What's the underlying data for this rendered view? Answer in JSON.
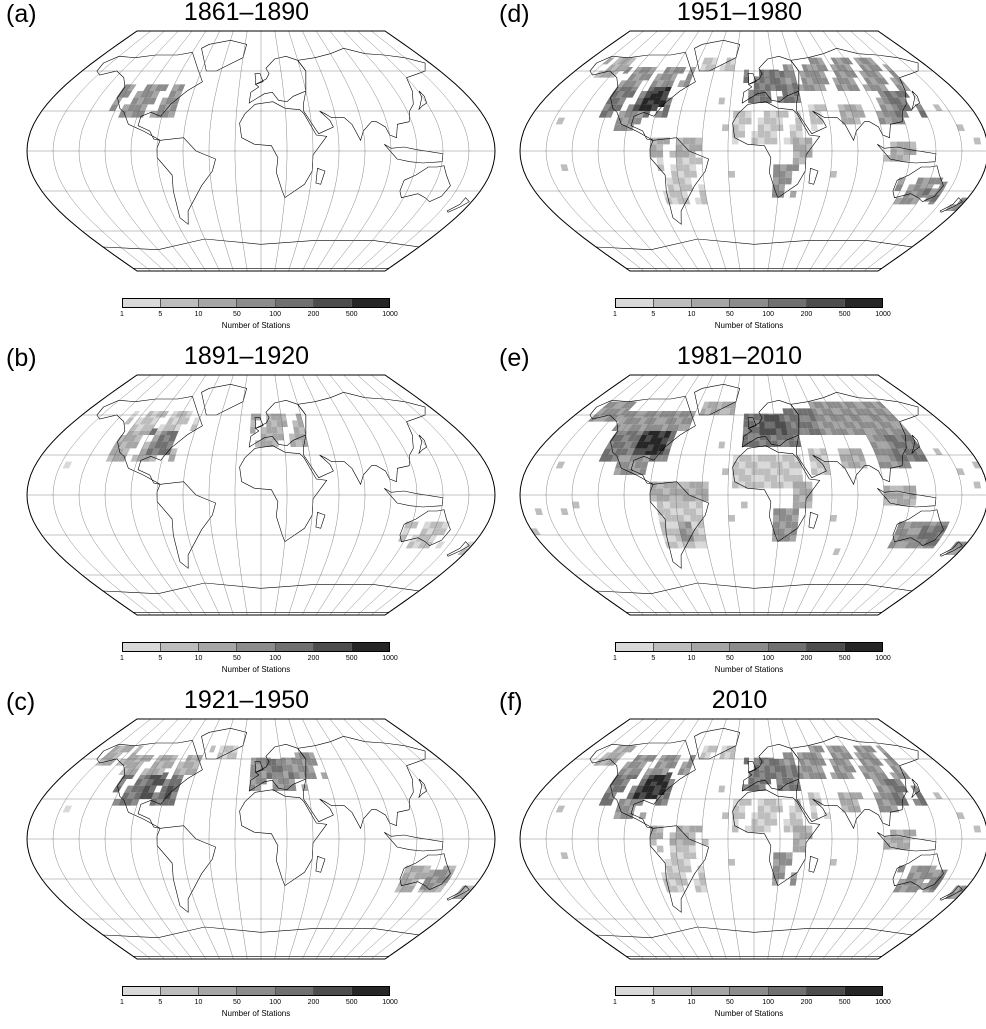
{
  "legend": {
    "title": "Number of Stations",
    "ticks": [
      "1",
      "5",
      "10",
      "50",
      "100",
      "200",
      "500",
      "1000"
    ],
    "colors": [
      "#d9d9d9",
      "#bdbdbd",
      "#a6a6a6",
      "#8c8c8c",
      "#707070",
      "#4d4d4d",
      "#262626",
      "#000000"
    ]
  },
  "panels": [
    {
      "letter": "(a)",
      "title": "1861–1890",
      "coverage_level": 1
    },
    {
      "letter": "(b)",
      "title": "1891–1920",
      "coverage_level": 2
    },
    {
      "letter": "(c)",
      "title": "1921–1950",
      "coverage_level": 3
    },
    {
      "letter": "(d)",
      "title": "1951–1980",
      "coverage_level": 4
    },
    {
      "letter": "(e)",
      "title": "1981–2010",
      "coverage_level": 5
    },
    {
      "letter": "(f)",
      "title": "2010",
      "coverage_level": 4
    }
  ]
}
